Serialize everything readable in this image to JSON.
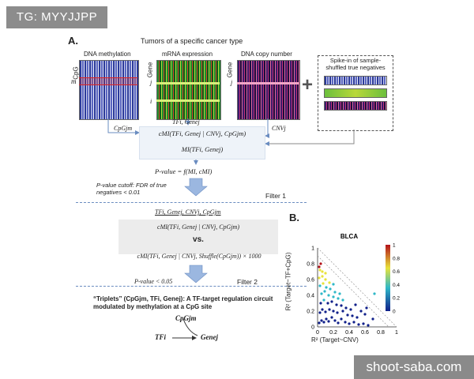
{
  "watermark": {
    "top": "TG: MYYJJPP",
    "bottom": "shoot-saba.com"
  },
  "panel_a": {
    "label": "A.",
    "title": "Tumors of a specific cancer type",
    "heatmaps": {
      "methylation": "DNA methylation",
      "mrna": "mRNA expression",
      "cnv": "DNA copy number",
      "axis_cpg": "CpG",
      "axis_gene": "Gene",
      "row_m": "m",
      "row_j": "j",
      "row_i": "i"
    },
    "spike_in": "Spike-in of sample-shuffled true negatives",
    "plus": "+",
    "labels": {
      "cpg_jm": "CpGjm",
      "tf_gene": "TFi, Genej",
      "cnv_j": "CNVj",
      "cmi": "cMI(TFi, Genej | CNVj, CpGjm)",
      "mi": "MI(TFi, Genej)",
      "pvalue": "P-value = f(MI, cMI)",
      "cutoff": "P-value cutoff: FDR of true negatives < 0.01",
      "filter1": "Filter 1",
      "quad": "TFi, Genej, CNVj, CpGjm",
      "cmi2": "cMI(TFi, Genej | CNVj, CpGjm)",
      "vs": "vs.",
      "cmi_shuffle": "cMI(TFi, Genej | CNVj, Shuffle(CpGjm)) × 1000",
      "pvalue2": "P-value < 0.05",
      "filter2": "Filter 2",
      "triplets": "“Triplets” (CpGjm, TFi, Genej): A TF-target regulation circuit modulated by methylation at a CpG site",
      "tri_cpg": "CpGjm",
      "tri_tf": "TFi",
      "tri_gene": "Genej"
    }
  },
  "panel_b": {
    "label": "B.",
    "chart_data": {
      "type": "scatter",
      "title": "BLCA",
      "xlabel": "R² (Target~CNV)",
      "ylabel": "R² (Target~TF+CpG)",
      "xlim": [
        0,
        1
      ],
      "ylim": [
        0,
        1
      ],
      "x_ticks": [
        "0",
        "0.2",
        "0.4",
        "0.6",
        "0.8",
        "1"
      ],
      "y_ticks": [
        "0",
        "0.2",
        "0.4",
        "0.6",
        "0.8",
        "1"
      ],
      "colorbar_ticks": [
        "1",
        "0.8",
        "0.6",
        "0.4",
        "0.2",
        "0"
      ],
      "colors": {
        "low": "#10208a",
        "mid": "#2fb8c8",
        "midhigh": "#e8e23a",
        "high": "#b3121a"
      },
      "series": [
        {
          "values": [
            [
              0.02,
              0.05
            ],
            [
              0.05,
              0.08
            ],
            [
              0.08,
              0.06
            ],
            [
              0.11,
              0.1
            ],
            [
              0.14,
              0.07
            ],
            [
              0.18,
              0.12
            ],
            [
              0.22,
              0.08
            ],
            [
              0.26,
              0.05
            ],
            [
              0.3,
              0.1
            ],
            [
              0.35,
              0.06
            ],
            [
              0.4,
              0.04
            ],
            [
              0.46,
              0.06
            ],
            [
              0.52,
              0.03
            ],
            [
              0.58,
              0.04
            ],
            [
              0.64,
              0.02
            ],
            [
              0.03,
              0.18
            ],
            [
              0.06,
              0.22
            ],
            [
              0.1,
              0.19
            ],
            [
              0.15,
              0.22
            ],
            [
              0.2,
              0.2
            ],
            [
              0.25,
              0.18
            ],
            [
              0.32,
              0.2
            ],
            [
              0.38,
              0.15
            ],
            [
              0.44,
              0.14
            ],
            [
              0.5,
              0.12
            ],
            [
              0.04,
              0.3
            ],
            [
              0.08,
              0.34
            ],
            [
              0.13,
              0.3
            ],
            [
              0.18,
              0.32
            ],
            [
              0.24,
              0.28
            ],
            [
              0.3,
              0.27
            ],
            [
              0.36,
              0.24
            ],
            [
              0.42,
              0.22
            ],
            [
              0.05,
              0.42
            ],
            [
              0.09,
              0.45
            ],
            [
              0.14,
              0.4
            ],
            [
              0.2,
              0.38
            ],
            [
              0.26,
              0.36
            ],
            [
              0.32,
              0.34
            ],
            [
              0.03,
              0.52
            ],
            [
              0.07,
              0.55
            ],
            [
              0.11,
              0.5
            ],
            [
              0.16,
              0.48
            ],
            [
              0.22,
              0.44
            ],
            [
              0.28,
              0.42
            ],
            [
              0.02,
              0.62
            ],
            [
              0.06,
              0.64
            ],
            [
              0.1,
              0.6
            ],
            [
              0.15,
              0.56
            ],
            [
              0.2,
              0.54
            ],
            [
              0.03,
              0.72
            ],
            [
              0.06,
              0.7
            ],
            [
              0.1,
              0.68
            ],
            [
              0.04,
              0.8
            ],
            [
              0.02,
              0.76
            ],
            [
              0.55,
              0.2
            ],
            [
              0.6,
              0.16
            ],
            [
              0.62,
              0.24
            ],
            [
              0.7,
              0.1
            ],
            [
              0.48,
              0.28
            ],
            [
              0.72,
              0.42
            ]
          ]
        }
      ],
      "guide_lines": [
        "y = 1 - x",
        "y = 0.9 - x"
      ]
    }
  }
}
